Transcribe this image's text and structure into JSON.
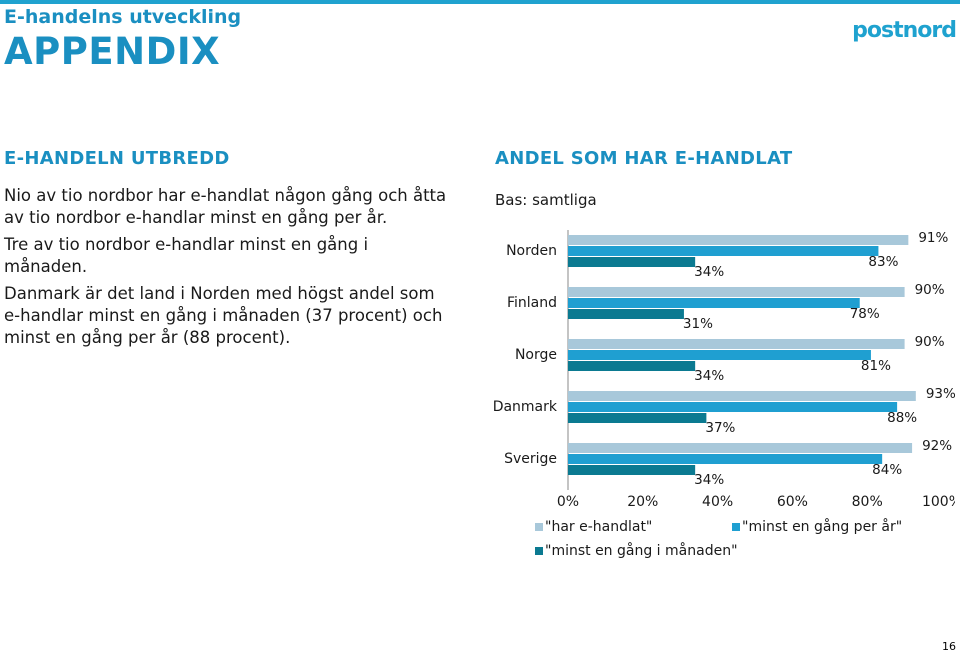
{
  "header": {
    "subtitle": "E-handelns utveckling",
    "title": "APPENDIX",
    "logo_text": "postnord"
  },
  "left": {
    "heading": "E-HANDELN UTBREDD",
    "paragraphs": [
      "Nio av tio nordbor har e-handlat någon gång och åtta av tio nordbor e-handlar minst en gång per år.",
      "Tre av tio nordbor e-handlar minst en gång i månaden.",
      "Danmark är det land i Norden med högst andel som e-handlar minst en gång i månaden (37 procent) och minst en gång per år (88 procent)."
    ]
  },
  "right": {
    "heading": "ANDEL SOM HAR E-HANDLAT",
    "base": "Bas: samtliga"
  },
  "page_number": "16",
  "colors": {
    "accent": "#1a8fc1",
    "series1": "#a8c8da",
    "series2": "#1f9fd1",
    "series3": "#0b7a91"
  },
  "chart_data": {
    "type": "bar",
    "orientation": "horizontal",
    "categories": [
      "Norden",
      "Finland",
      "Norge",
      "Danmark",
      "Sverige"
    ],
    "series": [
      {
        "name": "\"har e-handlat\"",
        "values": [
          91,
          90,
          90,
          93,
          92
        ],
        "labels": [
          "91%",
          "90%",
          "90%",
          "93%",
          "92%"
        ]
      },
      {
        "name": "\"minst en gång per år\"",
        "values": [
          83,
          78,
          81,
          88,
          84
        ],
        "labels": [
          "83%",
          "78%",
          "81%",
          "88%",
          "84%"
        ]
      },
      {
        "name": "\"minst en gång i månaden\"",
        "values": [
          34,
          31,
          34,
          37,
          34
        ],
        "labels": [
          "34%",
          "31%",
          "34%",
          "37%",
          "34%"
        ]
      }
    ],
    "xlim": [
      0,
      100
    ],
    "ticks": [
      "0%",
      "20%",
      "40%",
      "60%",
      "80%",
      "100%"
    ],
    "grid": false,
    "legend": "bottom"
  }
}
